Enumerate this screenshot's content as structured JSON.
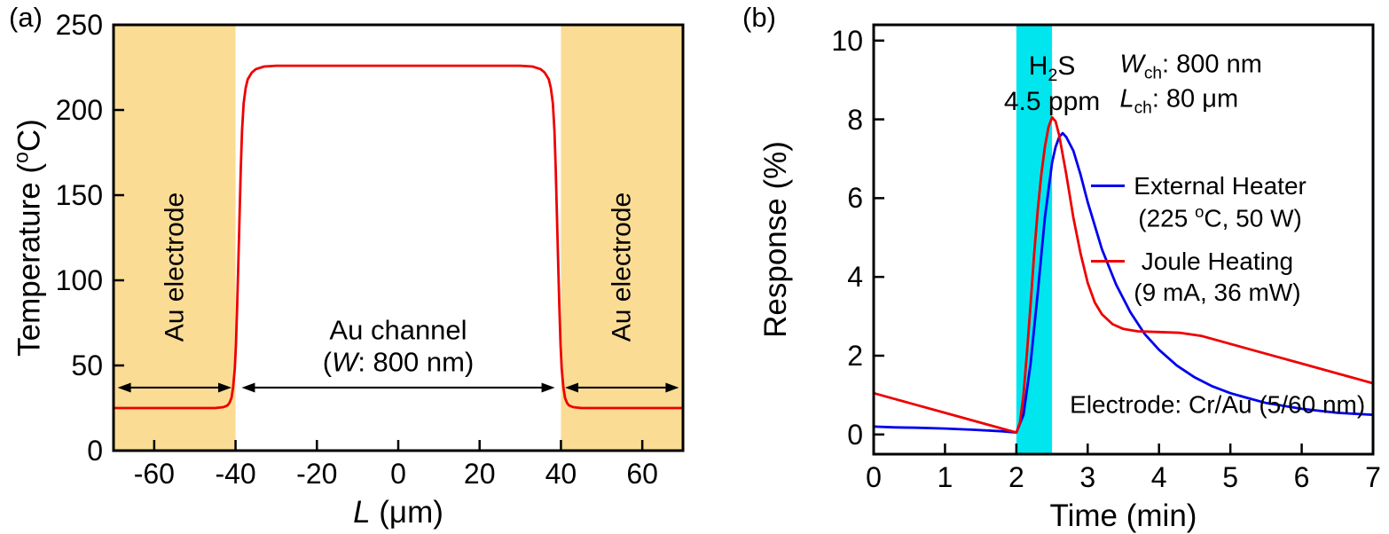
{
  "panels": [
    {
      "label": "(a)"
    },
    {
      "label": "(b)"
    }
  ],
  "chart_data": [
    {
      "type": "line",
      "title": "",
      "xlabel": "*L* (μm)",
      "ylabel": "Temperature (^o^C)",
      "xlim": [
        -70,
        70
      ],
      "ylim": [
        0,
        250
      ],
      "xticks": [
        -60,
        -40,
        -20,
        0,
        20,
        40,
        60
      ],
      "yticks": [
        0,
        50,
        100,
        150,
        200,
        250
      ],
      "grid": false,
      "shaded_regions": [
        {
          "name": "left-au-electrode",
          "x0": -70,
          "x1": -40,
          "color": "#FBDC95"
        },
        {
          "name": "right-au-electrode",
          "x0": 40,
          "x1": 70,
          "color": "#FBDC95"
        }
      ],
      "series": [
        {
          "name": "Temperature profile",
          "color": "#EE0000",
          "x": [
            -70,
            -60,
            -50,
            -45,
            -43,
            -42,
            -41.5,
            -41,
            -40.6,
            -40.2,
            -39.9,
            -39.6,
            -39.3,
            -39,
            -38.7,
            -38.4,
            -38,
            -37.5,
            -37,
            -36,
            -35,
            -33,
            -30,
            -25,
            -20,
            -10,
            0,
            10,
            20,
            25,
            30,
            33,
            35,
            36,
            37,
            37.5,
            38,
            38.4,
            38.7,
            39,
            39.3,
            39.6,
            39.9,
            40.2,
            40.6,
            41,
            41.5,
            42,
            43,
            45,
            50,
            60,
            70
          ],
          "y": [
            25,
            25,
            25,
            25,
            25.5,
            26.5,
            28,
            31,
            37,
            48,
            62,
            85,
            112,
            140,
            166,
            188,
            204,
            213,
            218,
            222,
            224,
            225.5,
            226,
            226,
            226,
            226,
            226,
            226,
            226,
            226,
            226,
            225.5,
            224,
            222,
            218,
            213,
            204,
            188,
            166,
            140,
            112,
            85,
            62,
            48,
            37,
            31,
            28,
            26.5,
            25.5,
            25,
            25,
            25,
            25
          ]
        }
      ],
      "annotations": [
        {
          "text": "Au electrode",
          "x": -55,
          "y": 108,
          "rotate": -90,
          "align": "center",
          "size": 30
        },
        {
          "text": "Au electrode",
          "x": 55,
          "y": 108,
          "rotate": -90,
          "align": "center",
          "size": 30
        },
        {
          "text": "Au channel\n(*W*: 800 nm)",
          "x": 0,
          "y": 61,
          "align": "center",
          "size": 31
        }
      ],
      "arrows": [
        {
          "x0": -69,
          "x1": -41,
          "y": 37
        },
        {
          "x0": -38.5,
          "x1": 38.5,
          "y": 37
        },
        {
          "x0": 41,
          "x1": 69,
          "y": 37
        }
      ]
    },
    {
      "type": "line",
      "title": "",
      "xlabel": "Time (min)",
      "ylabel": "Response (%)",
      "xlim": [
        0,
        7
      ],
      "ylim": [
        -0.5,
        10.4
      ],
      "xticks": [
        0,
        1,
        2,
        3,
        4,
        5,
        6,
        7
      ],
      "yticks": [
        0,
        2,
        4,
        6,
        8,
        10
      ],
      "grid": false,
      "shaded_regions": [
        {
          "name": "h2s-exposure-band",
          "x0": 2.0,
          "x1": 2.5,
          "color": "#00E5EE"
        }
      ],
      "series": [
        {
          "name": "External Heater",
          "color": "#0000EE",
          "x": [
            0,
            0.3,
            0.6,
            1.0,
            1.4,
            1.8,
            2.0,
            2.1,
            2.2,
            2.3,
            2.4,
            2.5,
            2.55,
            2.6,
            2.65,
            2.7,
            2.8,
            2.9,
            3.0,
            3.2,
            3.4,
            3.6,
            3.8,
            4.0,
            4.25,
            4.5,
            4.75,
            5.0,
            5.25,
            5.5,
            6.0,
            6.5,
            7.0
          ],
          "y": [
            0.2,
            0.18,
            0.17,
            0.15,
            0.12,
            0.08,
            0.05,
            0.5,
            1.8,
            3.6,
            5.5,
            6.9,
            7.3,
            7.55,
            7.65,
            7.55,
            7.2,
            6.6,
            5.9,
            4.7,
            3.8,
            3.1,
            2.55,
            2.15,
            1.75,
            1.45,
            1.22,
            1.05,
            0.92,
            0.8,
            0.65,
            0.55,
            0.5
          ]
        },
        {
          "name": "Joule Heating",
          "color": "#EE0000",
          "x": [
            0,
            0.5,
            1.0,
            1.5,
            1.9,
            2.0,
            2.05,
            2.1,
            2.15,
            2.2,
            2.25,
            2.3,
            2.35,
            2.4,
            2.45,
            2.5,
            2.55,
            2.6,
            2.7,
            2.8,
            2.9,
            3.0,
            3.1,
            3.2,
            3.35,
            3.5,
            3.7,
            4.0,
            4.3,
            4.6,
            5.0,
            5.5,
            6.0,
            6.5,
            7.0
          ],
          "y": [
            1.05,
            0.8,
            0.55,
            0.3,
            0.1,
            0.05,
            0.3,
            1.0,
            2.1,
            3.3,
            4.6,
            5.7,
            6.6,
            7.3,
            7.8,
            8.05,
            7.95,
            7.6,
            6.6,
            5.5,
            4.6,
            3.85,
            3.35,
            3.05,
            2.8,
            2.68,
            2.62,
            2.6,
            2.58,
            2.5,
            2.3,
            2.05,
            1.8,
            1.55,
            1.3
          ]
        }
      ],
      "annotations": [
        {
          "text": "H~2~S\n4.5 ppm",
          "x": 2.5,
          "y": 8.9,
          "align": "center",
          "size": 30
        },
        {
          "text": "*W*~ch~: 800 nm\n*L*~ch~: 80 μm",
          "x": 3.45,
          "y": 8.9,
          "align": "left",
          "size": 29
        },
        {
          "text": "Electrode: Cr/Au (5/60 nm)",
          "x": 4.82,
          "y": 0.75,
          "align": "center",
          "size": 28
        }
      ],
      "legend": {
        "x": 3.05,
        "y": 6.7,
        "entries": [
          {
            "color": "#0000EE",
            "label": "External Heater\n(225 ^o^C, 50 W)"
          },
          {
            "color": "#EE0000",
            "label": "Joule Heating\n(9 mA, 36 mW)"
          }
        ]
      }
    }
  ]
}
